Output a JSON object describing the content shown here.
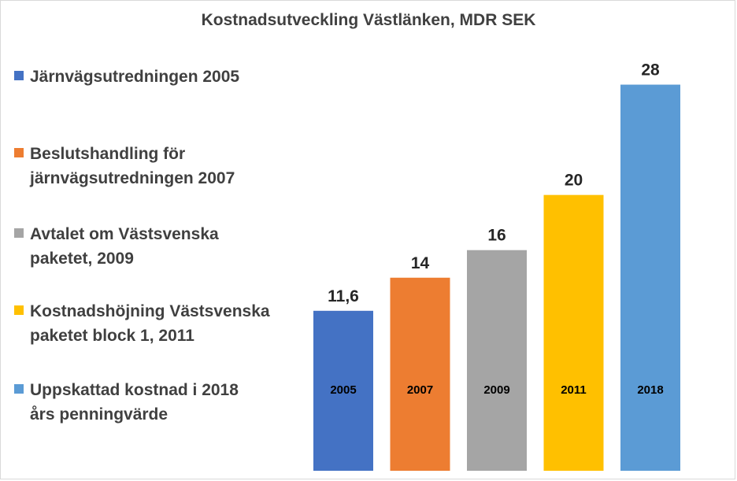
{
  "chart_data": {
    "type": "bar",
    "title": "Kostnadsutveckling Västlänken, MDR SEK",
    "xlabel": "",
    "ylabel": "",
    "ylim": [
      0,
      29
    ],
    "grid": false,
    "legend_placement": "left",
    "categories": [
      "2005",
      "2007",
      "2009",
      "2011",
      "2018"
    ],
    "value_labels": [
      "11,6",
      "14",
      "16",
      "20",
      "28"
    ],
    "values": [
      11.6,
      14,
      16,
      20,
      28
    ],
    "series": [
      {
        "name": "Järnvägsutredningen 2005",
        "color": "#4472c4"
      },
      {
        "name": "Beslutshandling för järnvägsutredningen 2007",
        "color": "#ed7d31"
      },
      {
        "name": "Avtalet om Västsvenska paketet, 2009",
        "color": "#a5a5a5"
      },
      {
        "name": "Kostnadshöjning Västsvenska paketet block 1, 2011",
        "color": "#ffc000"
      },
      {
        "name": "Uppskattad kostnad i 2018 års penningvärde",
        "color": "#5b9bd5"
      }
    ]
  }
}
